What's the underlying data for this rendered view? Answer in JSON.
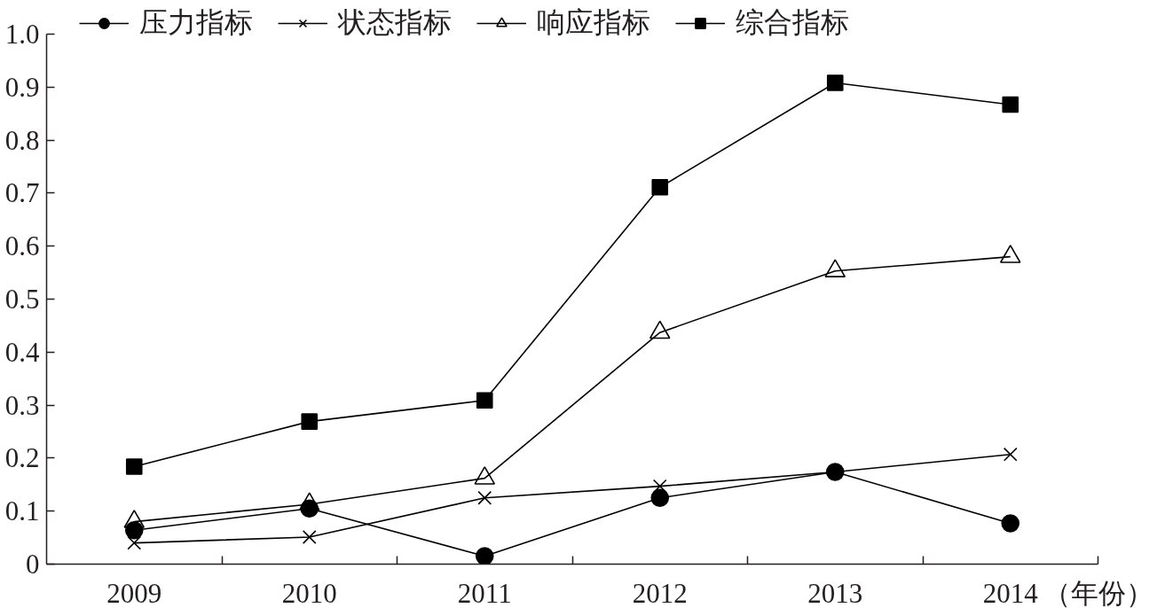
{
  "chart_data": {
    "type": "line",
    "xlabel": "（年份）",
    "categories": [
      "2009",
      "2010",
      "2011",
      "2012",
      "2013",
      "2014"
    ],
    "ylim": [
      0,
      1.0
    ],
    "yticks": [
      0,
      0.1,
      0.2,
      0.3,
      0.4,
      0.5,
      0.6,
      0.7,
      0.8,
      0.9,
      {
        "value": 1.0,
        "label": "1.0"
      }
    ],
    "grid": false,
    "legend": "top left",
    "line_style": "solid",
    "series": [
      {
        "name": "压力指标",
        "color": "#000000",
        "marker": "circle",
        "values": [
          0.064,
          0.105,
          0.015,
          0.125,
          0.174,
          0.077
        ]
      },
      {
        "name": "状态指标",
        "color": "#000000",
        "marker": "cross",
        "values": [
          0.04,
          0.051,
          0.125,
          0.147,
          0.174,
          0.207
        ]
      },
      {
        "name": "响应指标",
        "color": "#000000",
        "marker": "triangle",
        "values": [
          0.08,
          0.113,
          0.162,
          0.437,
          0.553,
          0.58
        ]
      },
      {
        "name": "综合指标",
        "color": "#000000",
        "marker": "square",
        "values": [
          0.184,
          0.269,
          0.309,
          0.711,
          0.908,
          0.867
        ]
      }
    ]
  }
}
